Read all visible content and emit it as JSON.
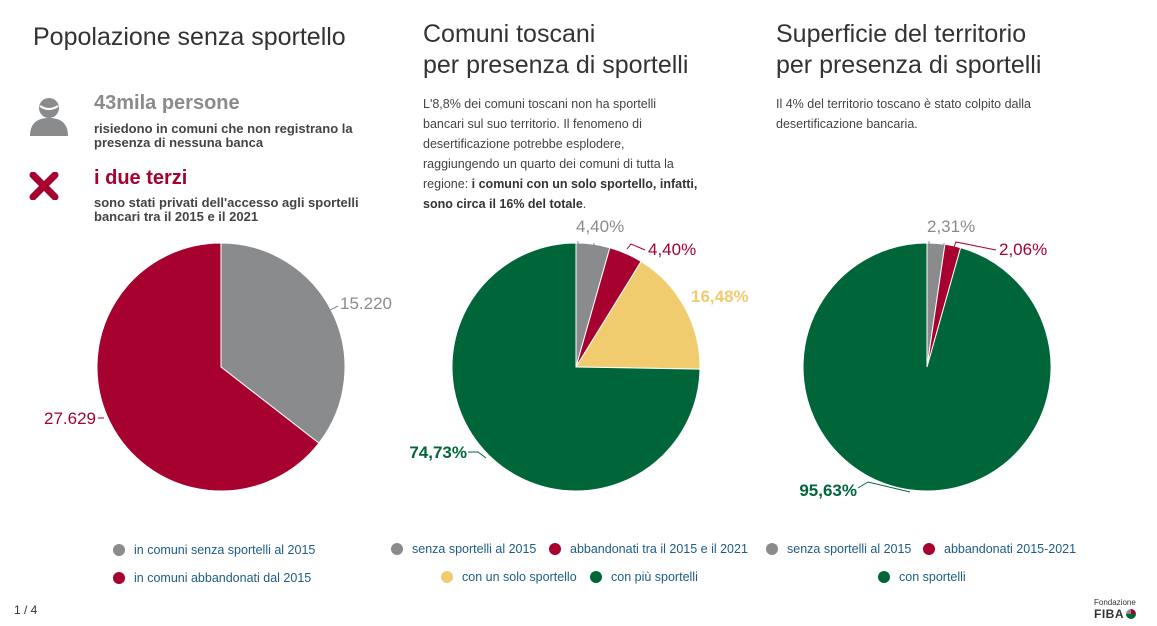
{
  "panel1": {
    "title": "Popolazione senza sportello",
    "stat1_head": "43mila persone",
    "stat1_sub1": "risiedono in comuni che non registrano la",
    "stat1_sub2": "presenza di nessuna banca",
    "stat2_head": "i due terzi",
    "stat2_sub1": "sono stati privati dell'accesso agli sportelli",
    "stat2_sub2": "bancari tra il 2015 e il 2021",
    "legend": [
      "in comuni senza sportelli al 2015",
      "in comuni abbandonati dal 2015"
    ]
  },
  "panel2": {
    "title1": "Comuni toscani",
    "title2": "per presenza di sportelli",
    "desc": [
      "L'8,8% dei comuni toscani non ha sportelli",
      "bancari sul suo territorio. Il fenomeno di",
      "desertificazione potrebbe esplodere,",
      "raggiungendo un quarto dei comuni di tutta la",
      "regione: "
    ],
    "desc_bold1": "i comuni con un solo sportello, infatti,",
    "desc_bold2": "sono circa il 16% del totale",
    "desc_end": ".",
    "legend": [
      "senza sportelli al 2015",
      "abbandonati tra il 2015 e il 2021",
      "con un solo sportello",
      "con più sportelli"
    ]
  },
  "panel3": {
    "title1": "Superficie del territorio",
    "title2": "per presenza di sportelli",
    "desc": [
      "Il 4% del territorio toscano è stato colpito dalla",
      "desertificazione bancaria."
    ],
    "legend": [
      "senza sportelli al 2015",
      "abbandonati 2015-2021",
      "con sportelli"
    ]
  },
  "colors": {
    "grey": "#8a8b8c",
    "red": "#a6012f",
    "yellow": "#f0cc6e",
    "green": "#006639",
    "legend_text": "#1d5c86"
  },
  "chart_data": [
    {
      "type": "pie",
      "categories": [
        "in comuni senza sportelli al 2015",
        "in comuni abbandonati dal 2015"
      ],
      "values": [
        15220,
        27629
      ],
      "labels": [
        "15.220",
        "27.629"
      ]
    },
    {
      "type": "pie",
      "categories": [
        "senza sportelli al 2015",
        "abbandonati tra il 2015 e il 2021",
        "con un solo sportello",
        "con più sportelli"
      ],
      "values": [
        4.4,
        4.4,
        16.48,
        74.73
      ],
      "labels": [
        "4,40%",
        "4,40%",
        "16,48%",
        "74,73%"
      ]
    },
    {
      "type": "pie",
      "categories": [
        "senza sportelli al 2015",
        "abbandonati 2015-2021",
        "con sportelli"
      ],
      "values": [
        2.31,
        2.06,
        95.63
      ],
      "labels": [
        "2,31%",
        "2,06%",
        "95,63%"
      ]
    }
  ],
  "footer": {
    "page": "1 / 4",
    "logo_small": "Fondazione",
    "logo_big": "FIBA"
  }
}
